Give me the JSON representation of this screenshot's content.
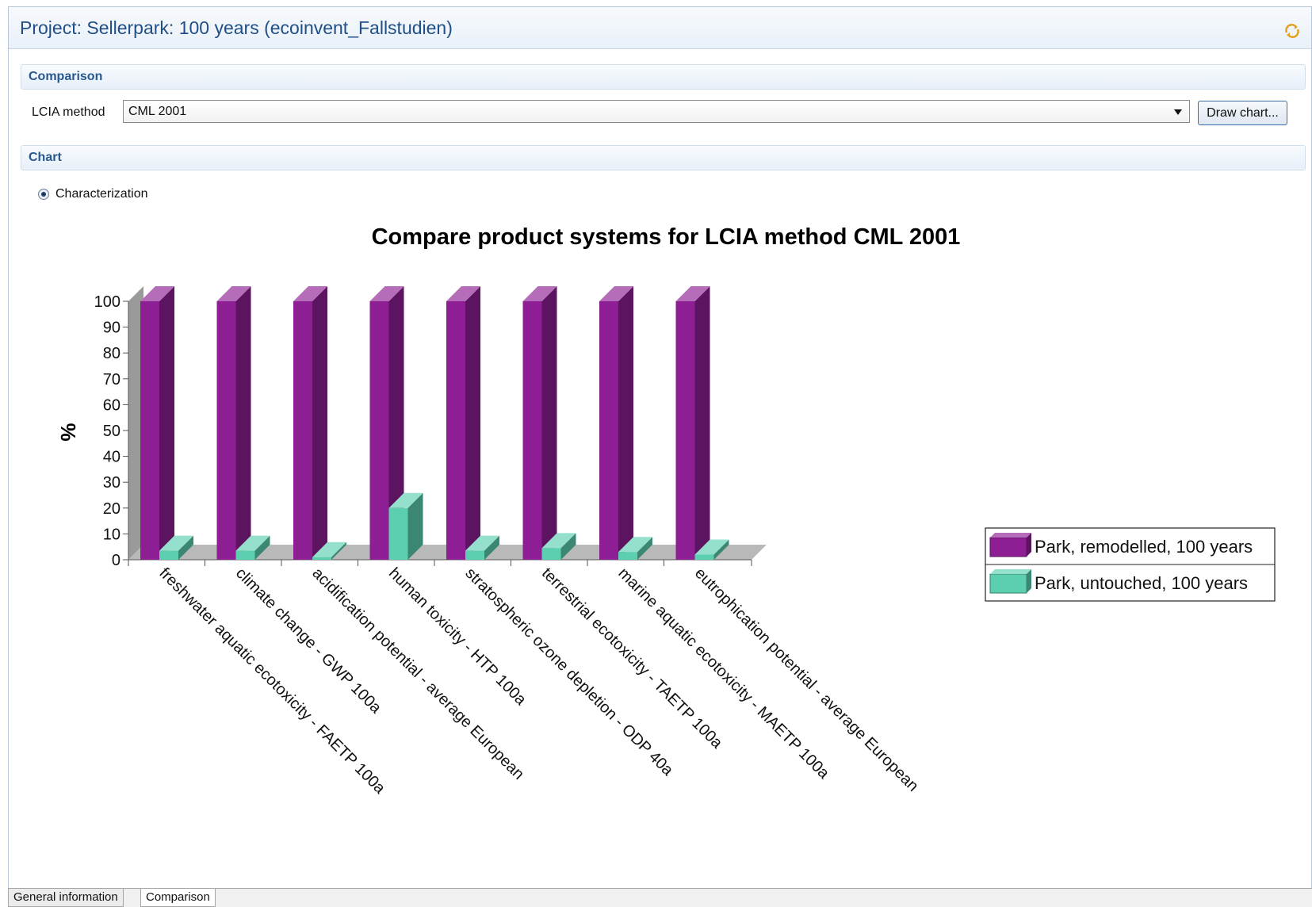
{
  "editor": {
    "title": "Project: Sellerpark: 100 years (ecoinvent_Fallstudien)"
  },
  "comparison_section": {
    "title": "Comparison",
    "lcia_label": "LCIA method",
    "lcia_value": "CML 2001",
    "draw_button": "Draw chart..."
  },
  "chart_section": {
    "title": "Chart",
    "radio_label": "Characterization"
  },
  "tabs": [
    {
      "label": "General information"
    },
    {
      "label": "Comparison"
    }
  ],
  "colors": {
    "series1": "#8e1e94",
    "series2": "#5ccfb0",
    "header_text": "#1f4f86"
  },
  "chart_data": {
    "type": "bar",
    "title": "Compare product systems for LCIA method CML 2001",
    "ylabel": "%",
    "xlabel": "",
    "ylim": [
      0,
      100
    ],
    "yticks": [
      0,
      10,
      20,
      30,
      40,
      50,
      60,
      70,
      80,
      90,
      100
    ],
    "legend_position": "right",
    "categories": [
      "freshwater aquatic ecotoxicity - FAETP 100a",
      "climate change - GWP 100a",
      "acidification potential - average European",
      "human toxicity - HTP 100a",
      "stratospheric ozone depletion - ODP 40a",
      "terrestrial ecotoxicity - TAETP 100a",
      "marine aquatic ecotoxicity - MAETP 100a",
      "eutrophication potential - average European"
    ],
    "series": [
      {
        "name": "Park, remodelled, 100 years",
        "values": [
          100,
          100,
          100,
          100,
          100,
          100,
          100,
          100
        ]
      },
      {
        "name": "Park, untouched, 100 years",
        "values": [
          3.5,
          3.5,
          1,
          20,
          3.5,
          4.5,
          3,
          2
        ]
      }
    ]
  }
}
